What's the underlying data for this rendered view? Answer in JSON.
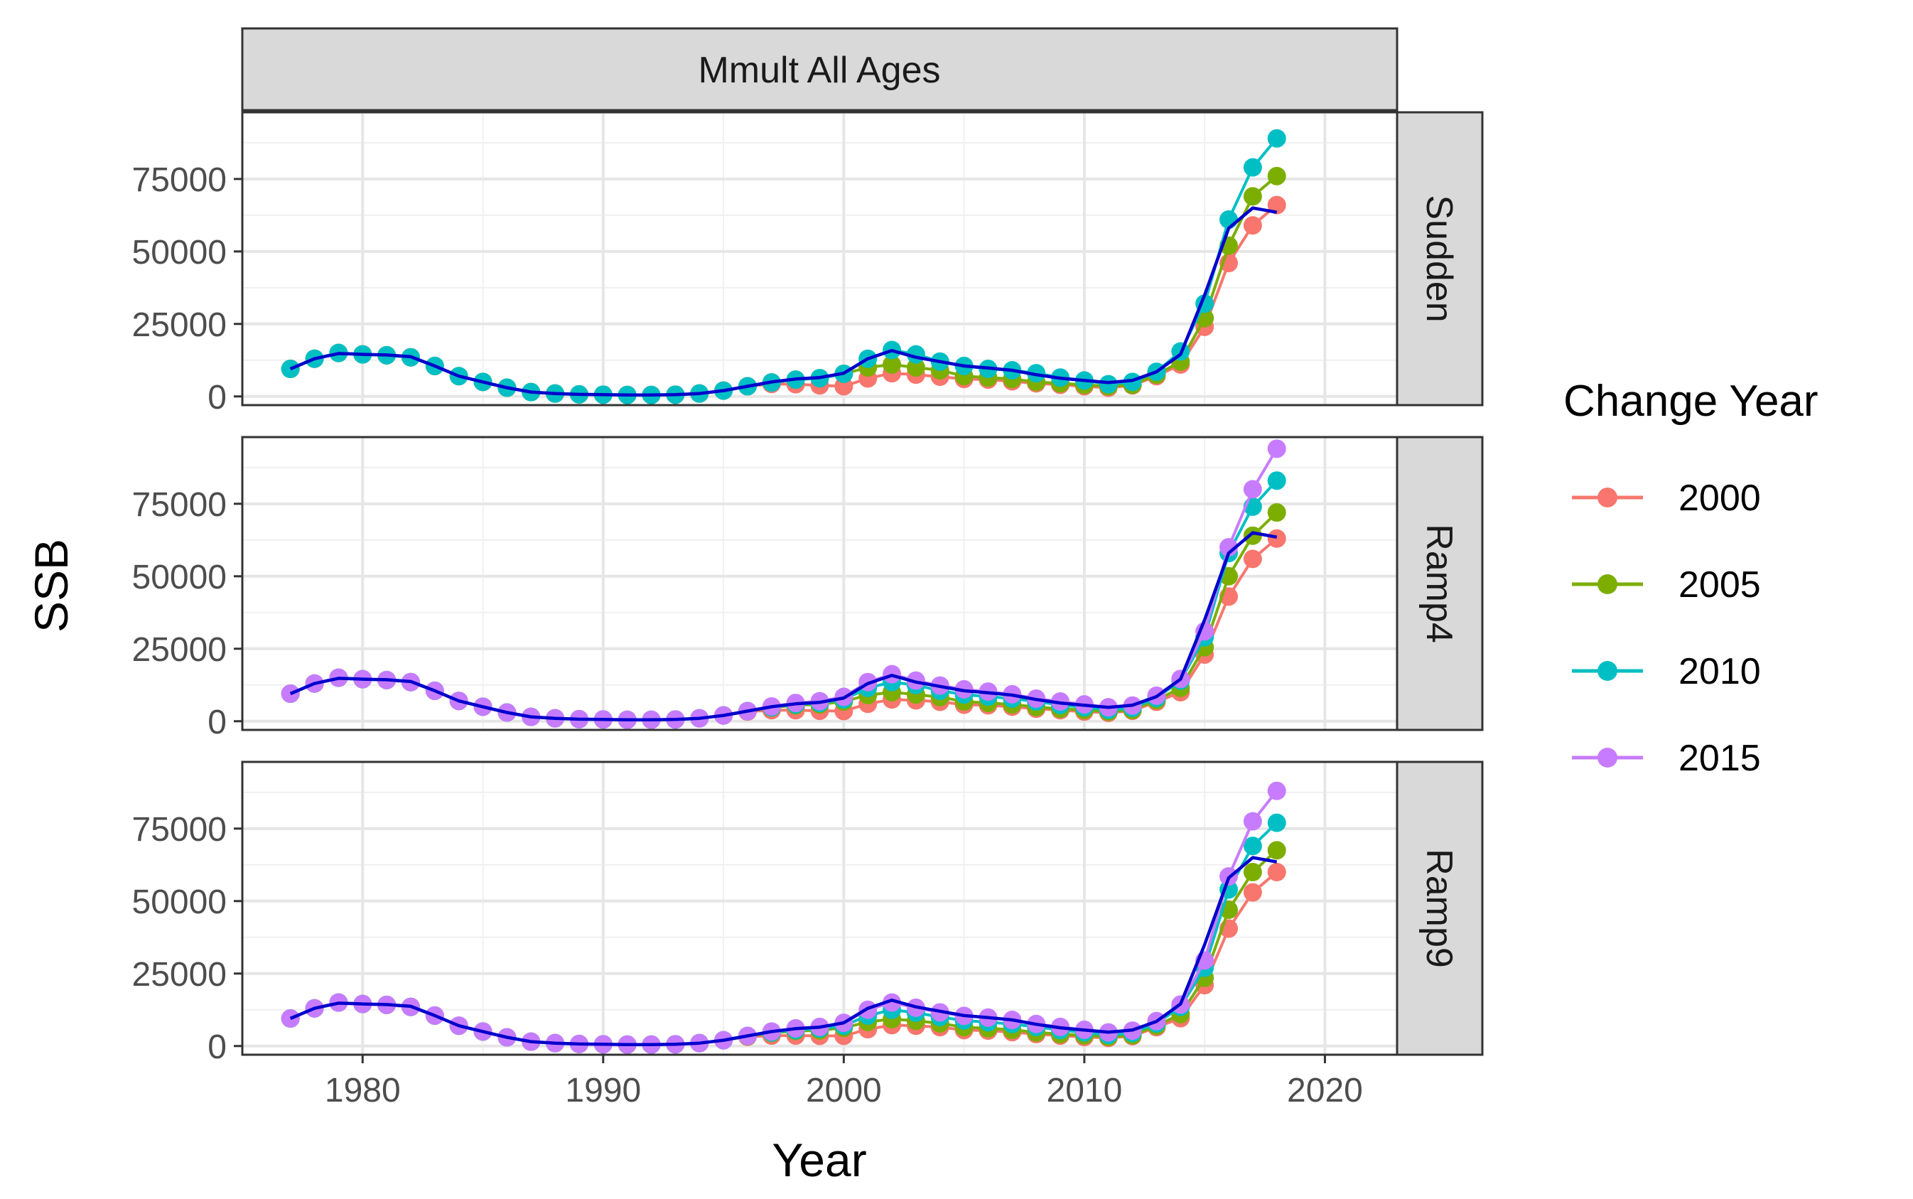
{
  "chart_data": {
    "type": "line",
    "facet_column_label": "Mmult All Ages",
    "facet_row_labels": [
      "Sudden",
      "Ramp4",
      "Ramp9"
    ],
    "xlabel": "Year",
    "ylabel": "SSB",
    "xlim": [
      1975,
      2023
    ],
    "ylim": [
      -3000,
      98000
    ],
    "x_ticks": [
      1980,
      1990,
      2000,
      2010,
      2020
    ],
    "y_ticks": [
      0,
      25000,
      50000,
      75000
    ],
    "grid": true,
    "legend": {
      "title": "Change Year",
      "placement": "right",
      "entries": [
        "2000",
        "2005",
        "2010",
        "2015"
      ]
    },
    "colors": {
      "2000": "#F8766D",
      "2005": "#7CAE00",
      "2010": "#00BFC4",
      "2015": "#C77CFF",
      "reference": "#0000CC"
    },
    "years": [
      1977,
      1978,
      1979,
      1980,
      1981,
      1982,
      1983,
      1984,
      1985,
      1986,
      1987,
      1988,
      1989,
      1990,
      1991,
      1992,
      1993,
      1994,
      1995,
      1996,
      1997,
      1998,
      1999,
      2000,
      2001,
      2002,
      2003,
      2004,
      2005,
      2006,
      2007,
      2008,
      2009,
      2010,
      2011,
      2012,
      2013,
      2014,
      2015,
      2016,
      2017,
      2018
    ],
    "base": [
      9500,
      13000,
      15000,
      14500,
      14200,
      13500,
      10500,
      7000,
      5000,
      3000,
      1500,
      1000,
      700,
      600,
      500,
      500,
      600,
      1000,
      2000,
      3500,
      4800,
      5800,
      6300,
      7800
    ],
    "reference_line": [
      9500,
      13000,
      14800,
      14500,
      14300,
      13700,
      10500,
      7000,
      5000,
      3000,
      1500,
      1000,
      700,
      600,
      500,
      500,
      600,
      1000,
      2000,
      3500,
      5000,
      6000,
      6500,
      8000,
      13000,
      15800,
      13500,
      12000,
      10500,
      9800,
      9000,
      7500,
      6300,
      5500,
      4800,
      5500,
      8500,
      14500,
      35000,
      58000,
      65000,
      63500
    ],
    "panels": [
      {
        "name": "Sudden",
        "series": [
          {
            "name": "2000",
            "values": [
              9500,
              13000,
              15000,
              14500,
              14200,
              13500,
              10500,
              7000,
              5000,
              3000,
              1500,
              1000,
              700,
              600,
              500,
              500,
              600,
              1000,
              2000,
              3500,
              4300,
              4200,
              3800,
              3500,
              6200,
              8000,
              7500,
              6800,
              6000,
              5800,
              5200,
              4500,
              4000,
              3500,
              3000,
              3800,
              7000,
              11000,
              24000,
              46000,
              59000,
              66000
            ]
          },
          {
            "name": "2005",
            "values": [
              9500,
              13000,
              15000,
              14500,
              14200,
              13500,
              10500,
              7000,
              5000,
              3000,
              1500,
              1000,
              700,
              600,
              500,
              500,
              600,
              1000,
              2000,
              3500,
              4800,
              5800,
              6300,
              7800,
              10000,
              11000,
              10000,
              9000,
              7000,
              6500,
              6000,
              5000,
              4500,
              4000,
              3500,
              4000,
              7500,
              12000,
              27000,
              52000,
              69000,
              76000
            ]
          },
          {
            "name": "2010",
            "values": [
              9500,
              13000,
              15000,
              14500,
              14200,
              13500,
              10500,
              7000,
              5000,
              3000,
              1500,
              1000,
              700,
              600,
              500,
              500,
              600,
              1000,
              2000,
              3500,
              4800,
              5800,
              6300,
              7800,
              13000,
              16000,
              14500,
              12000,
              10500,
              9500,
              9000,
              8000,
              6500,
              5500,
              4200,
              5000,
              8500,
              15500,
              32000,
              61000,
              79000,
              89000
            ]
          }
        ]
      },
      {
        "name": "Ramp4",
        "series": [
          {
            "name": "2000",
            "values": [
              9500,
              13000,
              15000,
              14500,
              14200,
              13500,
              10500,
              7000,
              5000,
              3000,
              1500,
              1000,
              700,
              600,
              500,
              500,
              600,
              1000,
              2000,
              3300,
              3800,
              3800,
              3600,
              3500,
              6000,
              7500,
              7200,
              6700,
              5700,
              5500,
              5000,
              4300,
              3800,
              3300,
              2900,
              3600,
              6700,
              10000,
              23000,
              43000,
              56000,
              63000
            ]
          },
          {
            "name": "2005",
            "values": [
              9500,
              13000,
              15000,
              14500,
              14200,
              13500,
              10500,
              7000,
              5000,
              3000,
              1500,
              1000,
              700,
              600,
              500,
              500,
              600,
              1000,
              2000,
              3500,
              4700,
              5500,
              5800,
              6800,
              9000,
              10000,
              9200,
              8300,
              6800,
              6300,
              5800,
              4900,
              4300,
              3900,
              3300,
              3900,
              7300,
              11500,
              25500,
              50000,
              64000,
              72000
            ]
          },
          {
            "name": "2010",
            "values": [
              9500,
              13000,
              15000,
              14500,
              14200,
              13500,
              10500,
              7000,
              5000,
              3000,
              1500,
              1000,
              700,
              600,
              500,
              500,
              600,
              1000,
              2000,
              3500,
              4800,
              5800,
              6300,
              7500,
              11500,
              13500,
              12500,
              10500,
              9200,
              8500,
              7800,
              6800,
              5600,
              4800,
              3900,
              4600,
              8000,
              14000,
              29000,
              58000,
              74000,
              83000
            ]
          },
          {
            "name": "2015",
            "values": [
              9500,
              13000,
              15000,
              14500,
              14200,
              13500,
              10500,
              7000,
              5000,
              3000,
              1500,
              1000,
              700,
              600,
              500,
              500,
              600,
              1000,
              2000,
              3500,
              5100,
              6300,
              6900,
              8400,
              13500,
              16200,
              14000,
              12300,
              11000,
              10200,
              9300,
              7800,
              6800,
              5800,
              4800,
              5400,
              8800,
              14600,
              31000,
              60000,
              80000,
              94000
            ]
          }
        ]
      },
      {
        "name": "Ramp9",
        "series": [
          {
            "name": "2000",
            "values": [
              9500,
              13000,
              15000,
              14500,
              14200,
              13500,
              10500,
              7000,
              5000,
              3000,
              1500,
              1000,
              700,
              600,
              500,
              500,
              600,
              1000,
              2000,
              3200,
              3600,
              3600,
              3500,
              3500,
              5800,
              7200,
              7000,
              6500,
              5500,
              5300,
              4800,
              4100,
              3600,
              3100,
              2800,
              3400,
              6500,
              9600,
              21000,
              40500,
              53000,
              60000
            ]
          },
          {
            "name": "2005",
            "values": [
              9500,
              13000,
              15000,
              14500,
              14200,
              13500,
              10500,
              7000,
              5000,
              3000,
              1500,
              1000,
              700,
              600,
              500,
              500,
              600,
              1000,
              2000,
              3400,
              4500,
              5200,
              5400,
              6300,
              8300,
              9300,
              8700,
              7800,
              6500,
              6100,
              5600,
              4700,
              4100,
              3700,
              3200,
              3700,
              7000,
              11000,
              23500,
              47000,
              60000,
              67500
            ]
          },
          {
            "name": "2010",
            "values": [
              9500,
              13000,
              15000,
              14500,
              14200,
              13500,
              10500,
              7000,
              5000,
              3000,
              1500,
              1000,
              700,
              600,
              500,
              500,
              600,
              1000,
              2000,
              3500,
              4700,
              5500,
              6000,
              7000,
              10500,
              12500,
              11500,
              10000,
              8800,
              8200,
              7600,
              6600,
              5500,
              4700,
              3800,
              4500,
              7800,
              13500,
              27000,
              54000,
              69000,
              77000
            ]
          },
          {
            "name": "2015",
            "values": [
              9500,
              13000,
              15000,
              14500,
              14200,
              13500,
              10500,
              7000,
              5000,
              3000,
              1500,
              1000,
              700,
              600,
              500,
              500,
              600,
              1000,
              2000,
              3500,
              5000,
              6100,
              6600,
              8000,
              12500,
              15000,
              13200,
              11600,
              10400,
              9800,
              9000,
              7600,
              6600,
              5600,
              4700,
              5300,
              8600,
              14300,
              29500,
              58500,
              77500,
              88000
            ]
          }
        ]
      }
    ]
  }
}
